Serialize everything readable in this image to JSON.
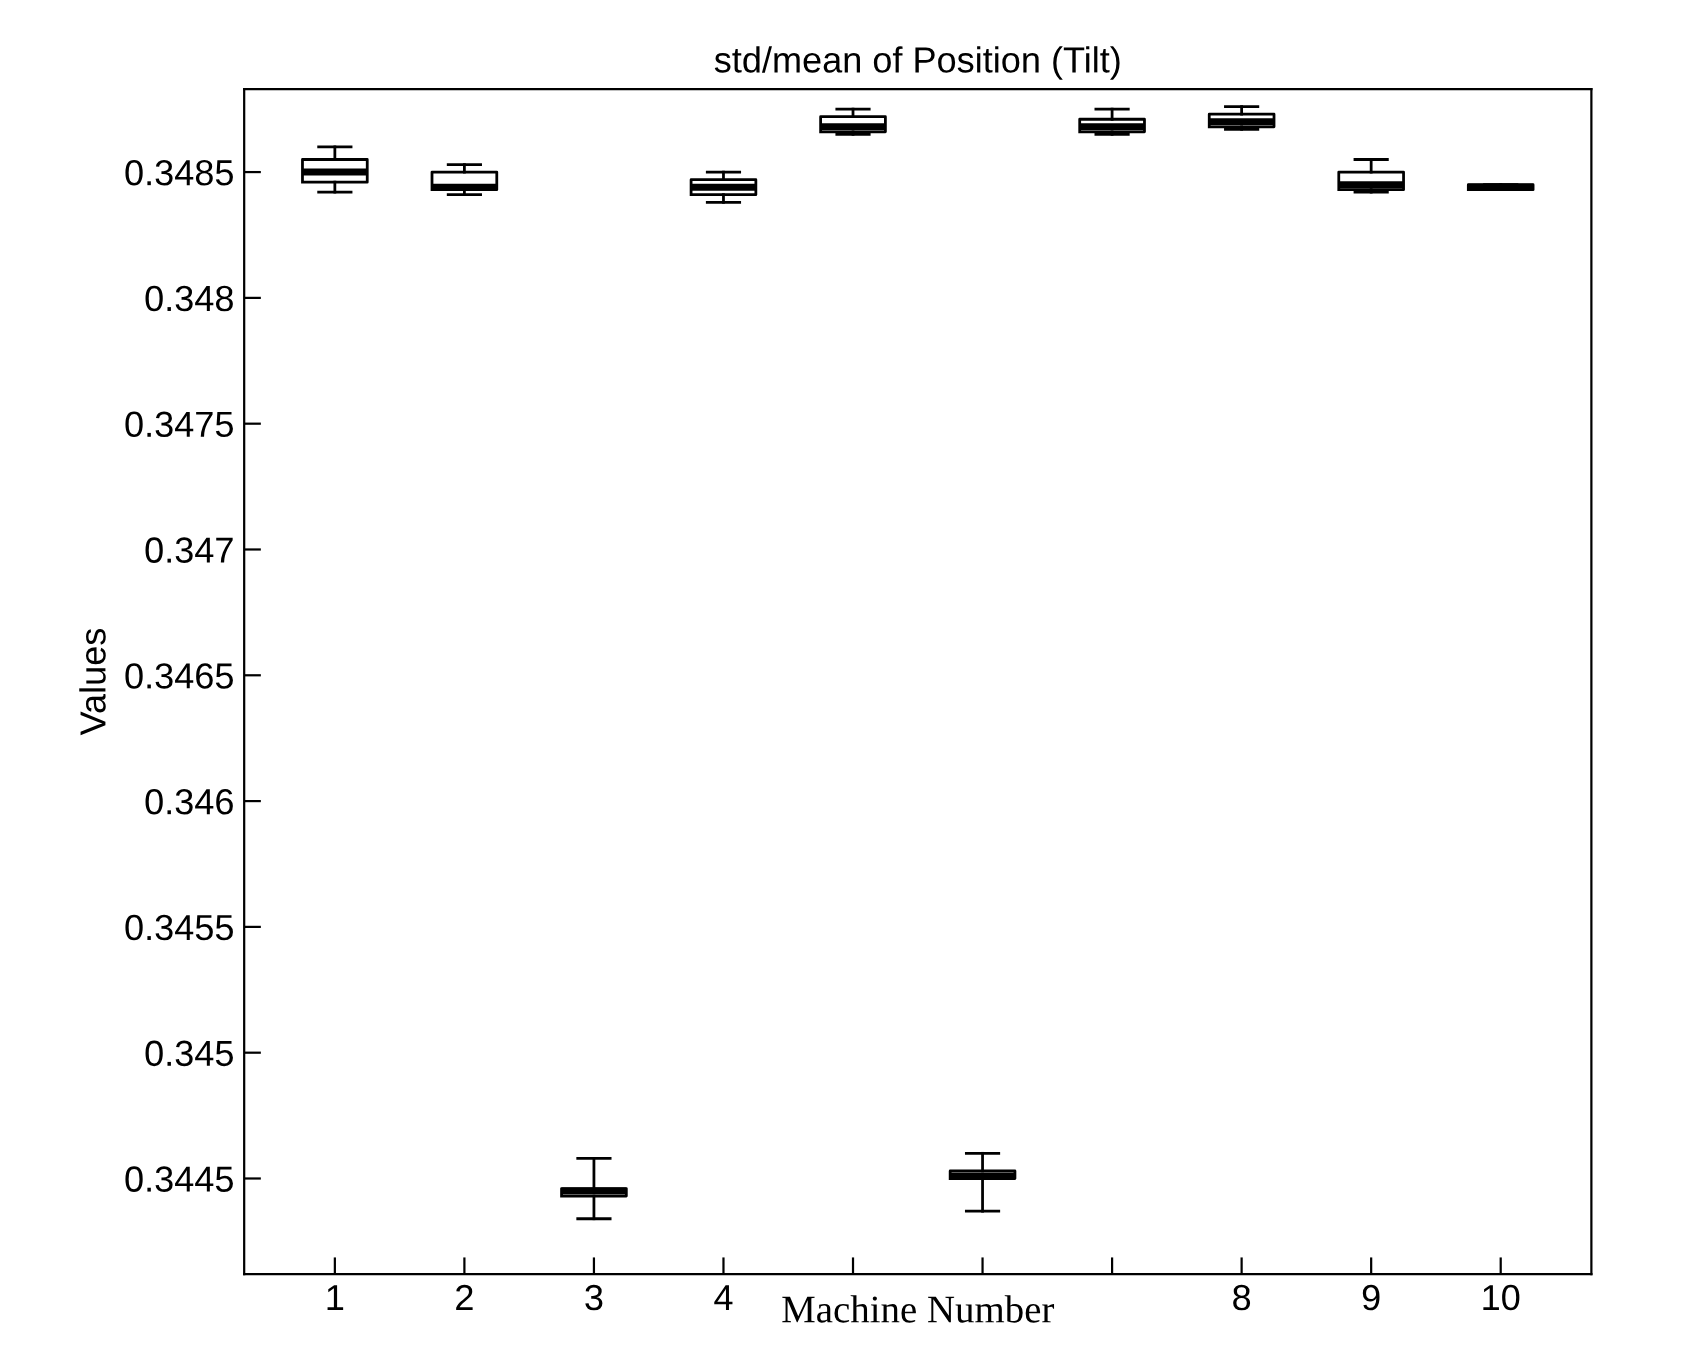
{
  "chart_data": {
    "type": "box",
    "title": "std/mean of Position (Tilt)",
    "xlabel": "Machine Number",
    "ylabel": "Values",
    "categories": [
      "1",
      "2",
      "3",
      "4",
      null,
      null,
      null,
      "8",
      "9",
      "10"
    ],
    "ylim": [
      0.34412,
      0.34883
    ],
    "yticks": [
      0.3445,
      0.345,
      0.3455,
      0.346,
      0.3465,
      0.347,
      0.3475,
      0.348,
      0.3485
    ],
    "grid": false,
    "boxes": [
      {
        "low": 0.34842,
        "q1": 0.34846,
        "median": 0.3485,
        "q3": 0.34855,
        "high": 0.3486
      },
      {
        "low": 0.34841,
        "q1": 0.34843,
        "median": 0.34844,
        "q3": 0.3485,
        "high": 0.34853
      },
      {
        "low": 0.34434,
        "q1": 0.34443,
        "median": 0.34445,
        "q3": 0.34446,
        "high": 0.34458
      },
      {
        "low": 0.34838,
        "q1": 0.34841,
        "median": 0.34844,
        "q3": 0.34847,
        "high": 0.3485
      },
      {
        "low": 0.34865,
        "q1": 0.34866,
        "median": 0.34868,
        "q3": 0.34872,
        "high": 0.34875
      },
      {
        "low": 0.34437,
        "q1": 0.3445,
        "median": 0.34451,
        "q3": 0.34453,
        "high": 0.3446
      },
      {
        "low": 0.34865,
        "q1": 0.34866,
        "median": 0.34868,
        "q3": 0.34871,
        "high": 0.34875
      },
      {
        "low": 0.34867,
        "q1": 0.34868,
        "median": 0.3487,
        "q3": 0.34873,
        "high": 0.34876
      },
      {
        "low": 0.34842,
        "q1": 0.34843,
        "median": 0.34845,
        "q3": 0.3485,
        "high": 0.34855
      },
      {
        "low": 0.34843,
        "q1": 0.34843,
        "median": 0.34844,
        "q3": 0.34845,
        "high": 0.34845
      }
    ]
  }
}
